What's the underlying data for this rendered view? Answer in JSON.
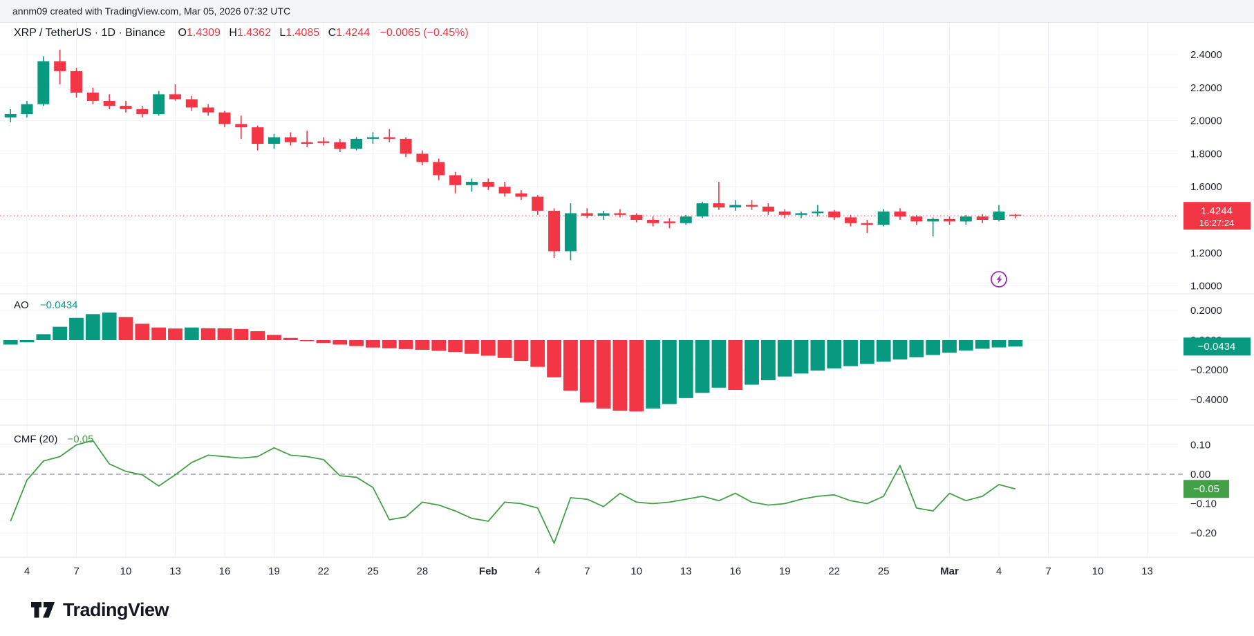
{
  "header": {
    "attribution": "annm09 created with TradingView.com, Mar 05, 2026 07:32 UTC"
  },
  "legend": {
    "symbol": "XRP / TetherUS · 1D · Binance",
    "o_label": "O",
    "o_value": "1.4309",
    "h_label": "H",
    "h_value": "1.4362",
    "l_label": "L",
    "l_value": "1.4085",
    "c_label": "C",
    "c_value": "1.4244",
    "change": "−0.0065 (−0.45%)"
  },
  "indicators": {
    "ao": {
      "label": "AO",
      "value": "−0.0434"
    },
    "cmf": {
      "label": "CMF (20)",
      "value": "−0.05"
    }
  },
  "badges": {
    "price": {
      "value": "1.4244",
      "countdown": "16:27:24",
      "bg": "#f23645"
    },
    "ao": {
      "value": "−0.0434",
      "bg": "#089981"
    },
    "cmf": {
      "value": "−0.05",
      "bg": "#43a047"
    }
  },
  "colors": {
    "up": "#089981",
    "down": "#f23645",
    "cmf_line": "#43a047",
    "grid": "#f0f3fa",
    "separator": "#e0e3eb",
    "text": "#131722",
    "axis_text": "#23262f",
    "dashed_zero": "#8b8e98",
    "flash_icon": "#9c27b0"
  },
  "axes": {
    "price_ticks": [
      {
        "label": "2.4000",
        "value": 2.4
      },
      {
        "label": "2.2000",
        "value": 2.2
      },
      {
        "label": "2.0000",
        "value": 2.0
      },
      {
        "label": "1.8000",
        "value": 1.8
      },
      {
        "label": "1.6000",
        "value": 1.6
      },
      {
        "label": "1.2000",
        "value": 1.2
      },
      {
        "label": "1.0000",
        "value": 1.0
      }
    ],
    "ao_ticks": [
      {
        "label": "0.2000",
        "value": 0.2
      },
      {
        "label": "0.0000",
        "value": 0.0
      },
      {
        "label": "−0.2000",
        "value": -0.2
      },
      {
        "label": "−0.4000",
        "value": -0.4
      }
    ],
    "cmf_ticks": [
      {
        "label": "0.10",
        "value": 0.1
      },
      {
        "label": "0.00",
        "value": 0.0
      },
      {
        "label": "−0.10",
        "value": -0.1
      },
      {
        "label": "−0.20",
        "value": -0.2
      }
    ],
    "time_ticks": [
      {
        "label": "4",
        "day": 1,
        "bold": false
      },
      {
        "label": "7",
        "day": 4,
        "bold": false
      },
      {
        "label": "10",
        "day": 7,
        "bold": false
      },
      {
        "label": "13",
        "day": 10,
        "bold": false
      },
      {
        "label": "16",
        "day": 13,
        "bold": false
      },
      {
        "label": "19",
        "day": 16,
        "bold": false
      },
      {
        "label": "22",
        "day": 19,
        "bold": false
      },
      {
        "label": "25",
        "day": 22,
        "bold": false
      },
      {
        "label": "28",
        "day": 25,
        "bold": false
      },
      {
        "label": "Feb",
        "day": 29,
        "bold": true
      },
      {
        "label": "4",
        "day": 32,
        "bold": false
      },
      {
        "label": "7",
        "day": 35,
        "bold": false
      },
      {
        "label": "10",
        "day": 38,
        "bold": false
      },
      {
        "label": "13",
        "day": 41,
        "bold": false
      },
      {
        "label": "16",
        "day": 44,
        "bold": false
      },
      {
        "label": "19",
        "day": 47,
        "bold": false
      },
      {
        "label": "22",
        "day": 50,
        "bold": false
      },
      {
        "label": "25",
        "day": 53,
        "bold": false
      },
      {
        "label": "Mar",
        "day": 57,
        "bold": true
      },
      {
        "label": "4",
        "day": 60,
        "bold": false
      },
      {
        "label": "7",
        "day": 63,
        "bold": false
      },
      {
        "label": "10",
        "day": 66,
        "bold": false
      },
      {
        "label": "13",
        "day": 69,
        "bold": false
      }
    ]
  },
  "footer": {
    "logo_text": "TradingView"
  },
  "chart_data": [
    {
      "type": "candlestick",
      "title": "XRP / TetherUS · 1D · Binance",
      "ylim": [
        1.0,
        2.45
      ],
      "last_price": 1.4244,
      "countdown": "16:27:24",
      "x_dates": [
        "Jan 3",
        "Jan 4",
        "Jan 5",
        "Jan 6",
        "Jan 7",
        "Jan 8",
        "Jan 9",
        "Jan 10",
        "Jan 11",
        "Jan 12",
        "Jan 13",
        "Jan 14",
        "Jan 15",
        "Jan 16",
        "Jan 17",
        "Jan 18",
        "Jan 19",
        "Jan 20",
        "Jan 21",
        "Jan 22",
        "Jan 23",
        "Jan 24",
        "Jan 25",
        "Jan 26",
        "Jan 27",
        "Jan 28",
        "Jan 29",
        "Jan 30",
        "Jan 31",
        "Feb 1",
        "Feb 2",
        "Feb 3",
        "Feb 4",
        "Feb 5",
        "Feb 6",
        "Feb 7",
        "Feb 8",
        "Feb 9",
        "Feb 10",
        "Feb 11",
        "Feb 12",
        "Feb 13",
        "Feb 14",
        "Feb 15",
        "Feb 16",
        "Feb 17",
        "Feb 18",
        "Feb 19",
        "Feb 20",
        "Feb 21",
        "Feb 22",
        "Feb 23",
        "Feb 24",
        "Feb 25",
        "Feb 26",
        "Feb 27",
        "Feb 28",
        "Mar 1",
        "Mar 2",
        "Mar 3",
        "Mar 4",
        "Mar 5"
      ],
      "ohlc": [
        [
          2.02,
          2.07,
          1.99,
          2.04
        ],
        [
          2.04,
          2.12,
          2.02,
          2.1
        ],
        [
          2.1,
          2.39,
          2.09,
          2.36
        ],
        [
          2.36,
          2.43,
          2.22,
          2.3
        ],
        [
          2.3,
          2.32,
          2.14,
          2.17
        ],
        [
          2.17,
          2.2,
          2.1,
          2.12
        ],
        [
          2.12,
          2.16,
          2.07,
          2.09
        ],
        [
          2.09,
          2.12,
          2.05,
          2.07
        ],
        [
          2.07,
          2.09,
          2.02,
          2.04
        ],
        [
          2.04,
          2.18,
          2.03,
          2.16
        ],
        [
          2.16,
          2.22,
          2.12,
          2.13
        ],
        [
          2.13,
          2.15,
          2.06,
          2.08
        ],
        [
          2.08,
          2.1,
          2.03,
          2.05
        ],
        [
          2.05,
          2.06,
          1.96,
          1.98
        ],
        [
          1.98,
          2.03,
          1.89,
          1.96
        ],
        [
          1.96,
          1.97,
          1.82,
          1.86
        ],
        [
          1.86,
          1.92,
          1.83,
          1.9
        ],
        [
          1.9,
          1.93,
          1.85,
          1.87
        ],
        [
          1.87,
          1.94,
          1.84,
          1.86
        ],
        [
          1.875,
          1.9,
          1.85,
          1.865
        ],
        [
          1.87,
          1.89,
          1.81,
          1.83
        ],
        [
          1.83,
          1.9,
          1.82,
          1.89
        ],
        [
          1.89,
          1.93,
          1.86,
          1.9
        ],
        [
          1.9,
          1.95,
          1.87,
          1.89
        ],
        [
          1.89,
          1.9,
          1.78,
          1.8
        ],
        [
          1.8,
          1.82,
          1.73,
          1.75
        ],
        [
          1.75,
          1.77,
          1.64,
          1.67
        ],
        [
          1.67,
          1.69,
          1.56,
          1.61
        ],
        [
          1.61,
          1.65,
          1.57,
          1.63
        ],
        [
          1.63,
          1.65,
          1.58,
          1.6
        ],
        [
          1.6,
          1.63,
          1.54,
          1.56
        ],
        [
          1.56,
          1.58,
          1.52,
          1.54
        ],
        [
          1.54,
          1.55,
          1.43,
          1.455
        ],
        [
          1.455,
          1.47,
          1.17,
          1.21
        ],
        [
          1.21,
          1.5,
          1.155,
          1.44
        ],
        [
          1.44,
          1.47,
          1.41,
          1.425
        ],
        [
          1.425,
          1.455,
          1.4,
          1.44
        ],
        [
          1.44,
          1.465,
          1.415,
          1.43
        ],
        [
          1.43,
          1.44,
          1.385,
          1.4
        ],
        [
          1.4,
          1.42,
          1.36,
          1.38
        ],
        [
          1.39,
          1.41,
          1.35,
          1.38
        ],
        [
          1.38,
          1.43,
          1.37,
          1.42
        ],
        [
          1.42,
          1.51,
          1.41,
          1.5
        ],
        [
          1.5,
          1.63,
          1.46,
          1.475
        ],
        [
          1.475,
          1.52,
          1.455,
          1.49
        ],
        [
          1.49,
          1.52,
          1.46,
          1.48
        ],
        [
          1.48,
          1.5,
          1.43,
          1.45
        ],
        [
          1.45,
          1.465,
          1.41,
          1.43
        ],
        [
          1.43,
          1.45,
          1.41,
          1.44
        ],
        [
          1.44,
          1.49,
          1.42,
          1.45
        ],
        [
          1.45,
          1.46,
          1.4,
          1.415
        ],
        [
          1.415,
          1.43,
          1.36,
          1.38
        ],
        [
          1.38,
          1.4,
          1.32,
          1.37
        ],
        [
          1.37,
          1.465,
          1.36,
          1.45
        ],
        [
          1.45,
          1.47,
          1.4,
          1.42
        ],
        [
          1.42,
          1.43,
          1.37,
          1.39
        ],
        [
          1.39,
          1.415,
          1.3,
          1.405
        ],
        [
          1.405,
          1.42,
          1.37,
          1.39
        ],
        [
          1.39,
          1.43,
          1.37,
          1.42
        ],
        [
          1.42,
          1.435,
          1.38,
          1.4
        ],
        [
          1.4,
          1.49,
          1.39,
          1.45
        ],
        [
          1.4309,
          1.4362,
          1.4085,
          1.4244
        ]
      ]
    },
    {
      "type": "bar",
      "name": "AO",
      "last_value": -0.0434,
      "ylim": [
        -0.5,
        0.25
      ],
      "values": [
        -0.03,
        -0.015,
        0.04,
        0.09,
        0.15,
        0.175,
        0.185,
        0.155,
        0.11,
        0.085,
        0.078,
        0.085,
        0.08,
        0.079,
        0.075,
        0.06,
        0.035,
        0.015,
        -0.005,
        -0.02,
        -0.03,
        -0.04,
        -0.05,
        -0.055,
        -0.06,
        -0.065,
        -0.072,
        -0.08,
        -0.092,
        -0.105,
        -0.12,
        -0.14,
        -0.18,
        -0.25,
        -0.34,
        -0.42,
        -0.46,
        -0.475,
        -0.48,
        -0.46,
        -0.43,
        -0.39,
        -0.355,
        -0.32,
        -0.335,
        -0.3,
        -0.27,
        -0.245,
        -0.225,
        -0.205,
        -0.19,
        -0.175,
        -0.16,
        -0.145,
        -0.13,
        -0.115,
        -0.1,
        -0.085,
        -0.07,
        -0.058,
        -0.049,
        -0.0434
      ]
    },
    {
      "type": "line",
      "name": "CMF (20)",
      "last_value": -0.05,
      "ylim": [
        -0.27,
        0.14
      ],
      "zero_line": "dashed",
      "values": [
        -0.16,
        -0.02,
        0.045,
        0.06,
        0.1,
        0.115,
        0.035,
        0.01,
        -0.002,
        -0.04,
        -0.002,
        0.04,
        0.065,
        0.06,
        0.055,
        0.06,
        0.09,
        0.065,
        0.06,
        0.05,
        -0.005,
        -0.01,
        -0.045,
        -0.155,
        -0.145,
        -0.095,
        -0.105,
        -0.125,
        -0.15,
        -0.16,
        -0.095,
        -0.1,
        -0.115,
        -0.235,
        -0.08,
        -0.085,
        -0.11,
        -0.065,
        -0.095,
        -0.1,
        -0.095,
        -0.085,
        -0.075,
        -0.09,
        -0.065,
        -0.095,
        -0.105,
        -0.1,
        -0.085,
        -0.075,
        -0.07,
        -0.09,
        -0.1,
        -0.075,
        0.03,
        -0.115,
        -0.125,
        -0.065,
        -0.09,
        -0.075,
        -0.035,
        -0.05
      ]
    }
  ]
}
